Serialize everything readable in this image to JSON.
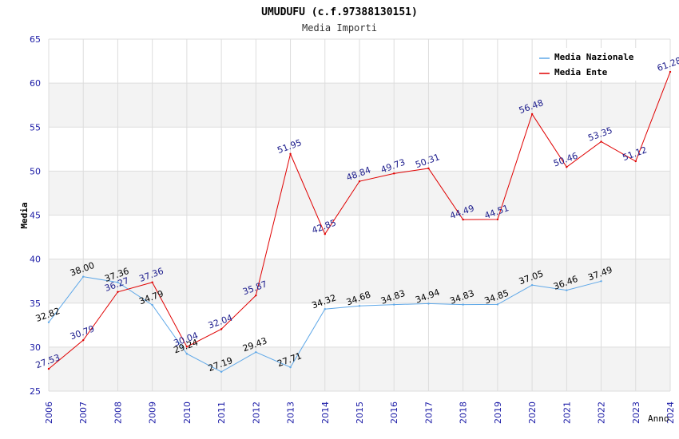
{
  "chart_data": {
    "type": "line",
    "title": "UMUDUFU (c.f.97388130151)",
    "subtitle": "Media Importi",
    "xlabel": "Anno",
    "ylabel": "Media",
    "ylim": [
      25,
      65
    ],
    "yticks": [
      25,
      30,
      35,
      40,
      45,
      50,
      55,
      60,
      65
    ],
    "categories": [
      "2006",
      "2007",
      "2008",
      "2009",
      "2010",
      "2011",
      "2012",
      "2013",
      "2014",
      "2015",
      "2016",
      "2017",
      "2018",
      "2019",
      "2020",
      "2021",
      "2022",
      "2023",
      "2024"
    ],
    "legend_position": "top-right",
    "series": [
      {
        "name": "Media Nazionale",
        "color": "#5fa8e8",
        "label_color": "#000000",
        "values": [
          32.82,
          38.0,
          37.36,
          34.79,
          29.24,
          27.19,
          29.43,
          27.71,
          34.32,
          34.68,
          34.83,
          34.94,
          34.83,
          34.85,
          37.05,
          36.46,
          37.49,
          null,
          null
        ],
        "labels": [
          "32.82",
          "38.00",
          "37.36",
          "34.79",
          "29.24",
          "27.19",
          "29.43",
          "27.71",
          "34.32",
          "34.68",
          "34.83",
          "34.94",
          "34.83",
          "34.85",
          "37.05",
          "36.46",
          "37.49",
          null,
          null
        ]
      },
      {
        "name": "Media Ente",
        "color": "#e00000",
        "label_color": "#1c1c8c",
        "values": [
          27.53,
          30.79,
          36.27,
          37.36,
          30.04,
          32.04,
          35.87,
          51.95,
          42.85,
          48.84,
          49.73,
          50.31,
          44.49,
          44.51,
          56.48,
          50.46,
          53.35,
          51.12,
          61.28
        ],
        "labels": [
          "27.53",
          "30.79",
          "36.27",
          "37.36",
          "30.04",
          "32.04",
          "35.87",
          "51.95",
          "42.85",
          "48.84",
          "49.73",
          "50.31",
          "44.49",
          "44.51",
          "56.48",
          "50.46",
          "53.35",
          "51.12",
          "61.28"
        ]
      }
    ]
  },
  "colors": {
    "band": "#f3f3f3",
    "grid": "#dddddd",
    "axis_tick_text": "#1a1aa6",
    "title_text": "#000000",
    "subtitle_text": "#333333"
  }
}
